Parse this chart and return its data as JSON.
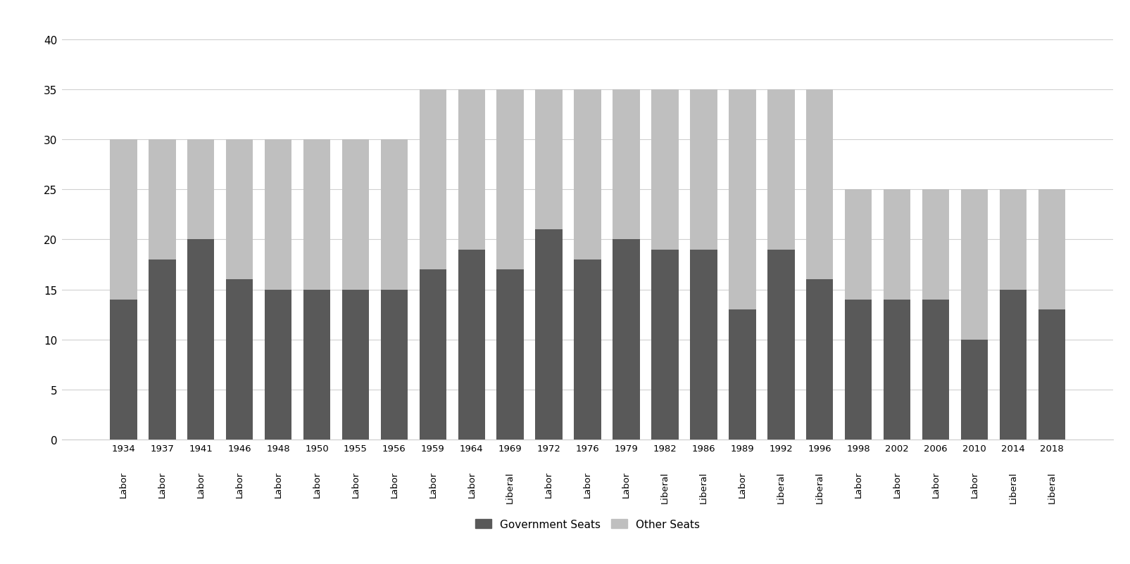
{
  "years": [
    1934,
    1937,
    1941,
    1946,
    1948,
    1950,
    1955,
    1956,
    1959,
    1964,
    1969,
    1972,
    1976,
    1979,
    1982,
    1986,
    1989,
    1992,
    1996,
    1998,
    2002,
    2006,
    2010,
    2014,
    2018
  ],
  "party_labels": [
    "Labor",
    "Labor",
    "Labor",
    "Labor",
    "Labor",
    "Labor",
    "Labor",
    "Labor",
    "Labor",
    "Labor",
    "Liberal",
    "Labor",
    "Labor",
    "Labor",
    "Liberal",
    "Liberal",
    "Labor",
    "Liberal",
    "Liberal",
    "Labor",
    "Labor",
    "Labor",
    "Labor",
    "Liberal",
    "Liberal"
  ],
  "gov_seats": [
    14,
    18,
    20,
    16,
    15,
    15,
    15,
    15,
    17,
    19,
    17,
    21,
    18,
    20,
    19,
    19,
    13,
    19,
    16,
    14,
    14,
    14,
    10,
    15,
    13
  ],
  "total_seats": [
    30,
    30,
    30,
    30,
    30,
    30,
    30,
    30,
    35,
    35,
    35,
    35,
    35,
    35,
    35,
    35,
    35,
    35,
    35,
    25,
    25,
    25,
    25,
    25,
    25
  ],
  "gov_color": "#595959",
  "other_color": "#bfbfbf",
  "background_color": "#ffffff",
  "yticks": [
    0,
    5,
    10,
    15,
    20,
    25,
    30,
    35,
    40
  ],
  "ylim": [
    0,
    42
  ],
  "legend_labels": [
    "Government Seats",
    "Other Seats"
  ],
  "bar_width": 0.7,
  "figsize": [
    16.05,
    8.03
  ],
  "dpi": 100
}
